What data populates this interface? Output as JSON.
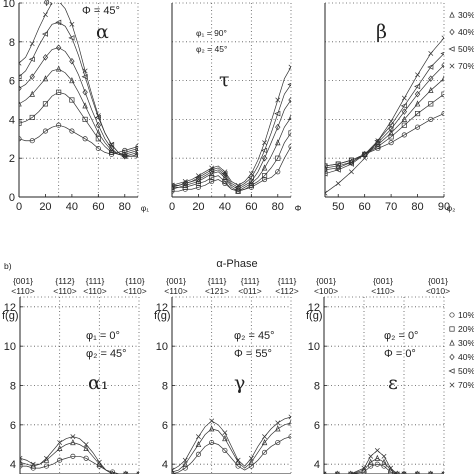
{
  "chart_data": [
    {
      "type": "line",
      "id": "alpha",
      "annotations": [
        "φ₁",
        "Φ = 45°"
      ],
      "fiber_label": "α",
      "xlabel": "φ₁",
      "xlim": [
        0,
        90
      ],
      "ylim": [
        0,
        10
      ],
      "xticks": [
        "0",
        "20",
        "40",
        "60",
        "80"
      ],
      "yticks": [
        "0",
        "2",
        "4",
        "6",
        "8",
        "10"
      ],
      "x": [
        0,
        5,
        10,
        15,
        20,
        25,
        30,
        35,
        40,
        45,
        50,
        55,
        60,
        65,
        70,
        75,
        80,
        85,
        90
      ],
      "series": [
        {
          "marker": "circle",
          "values": [
            3.0,
            2.9,
            2.9,
            3.1,
            3.4,
            3.6,
            3.7,
            3.6,
            3.4,
            3.2,
            3.0,
            2.8,
            2.5,
            2.3,
            2.2,
            2.3,
            2.4,
            2.5,
            2.6
          ]
        },
        {
          "marker": "square",
          "values": [
            3.8,
            3.9,
            4.1,
            4.4,
            4.8,
            5.2,
            5.4,
            5.3,
            5.0,
            4.5,
            4.0,
            3.5,
            3.0,
            2.6,
            2.3,
            2.2,
            2.3,
            2.4,
            2.5
          ]
        },
        {
          "marker": "triangle",
          "values": [
            4.8,
            5.0,
            5.3,
            5.7,
            6.1,
            6.5,
            6.6,
            6.4,
            6.0,
            5.4,
            4.7,
            4.0,
            3.3,
            2.8,
            2.4,
            2.2,
            2.2,
            2.3,
            2.4
          ]
        },
        {
          "marker": "diamond",
          "values": [
            5.6,
            5.8,
            6.2,
            6.7,
            7.2,
            7.6,
            7.7,
            7.5,
            7.0,
            6.3,
            5.4,
            4.5,
            3.7,
            3.0,
            2.5,
            2.2,
            2.1,
            2.2,
            2.3
          ]
        },
        {
          "marker": "tri-left",
          "values": [
            6.2,
            6.5,
            7.1,
            7.8,
            8.4,
            8.9,
            9.0,
            8.8,
            8.2,
            7.3,
            6.2,
            5.1,
            4.1,
            3.3,
            2.7,
            2.3,
            2.1,
            2.1,
            2.2
          ]
        },
        {
          "marker": "x",
          "values": [
            6.9,
            7.2,
            7.9,
            8.7,
            9.4,
            10.0,
            10.1,
            9.7,
            8.9,
            7.8,
            6.5,
            5.3,
            4.2,
            3.3,
            2.7,
            2.3,
            2.1,
            2.1,
            2.1
          ]
        }
      ]
    },
    {
      "type": "line",
      "id": "tau",
      "annotations": [
        "φ₁ = 90°",
        "φ₂ = 45°"
      ],
      "fiber_label": "τ",
      "xlabel": "Φ",
      "xlim": [
        0,
        90
      ],
      "ylim": [
        0,
        10
      ],
      "xticks": [
        "0",
        "20",
        "40",
        "60",
        "80"
      ],
      "x": [
        0,
        5,
        10,
        15,
        20,
        25,
        30,
        35,
        40,
        45,
        50,
        55,
        60,
        65,
        70,
        75,
        80,
        85,
        90
      ],
      "series": [
        {
          "marker": "circle",
          "values": [
            0.3,
            0.3,
            0.4,
            0.4,
            0.5,
            0.6,
            0.8,
            0.9,
            0.7,
            0.4,
            0.3,
            0.4,
            0.5,
            0.7,
            0.9,
            1.0,
            1.3,
            2.0,
            2.6
          ]
        },
        {
          "marker": "square",
          "values": [
            0.4,
            0.5,
            0.5,
            0.6,
            0.7,
            0.8,
            1.0,
            1.1,
            0.8,
            0.4,
            0.3,
            0.4,
            0.6,
            0.8,
            1.1,
            1.5,
            2.0,
            2.8,
            3.3
          ]
        },
        {
          "marker": "triangle",
          "values": [
            0.5,
            0.5,
            0.6,
            0.7,
            0.8,
            1.0,
            1.2,
            1.3,
            1.0,
            0.5,
            0.3,
            0.5,
            0.7,
            1.0,
            1.5,
            2.1,
            2.8,
            3.6,
            4.1
          ]
        },
        {
          "marker": "diamond",
          "values": [
            0.5,
            0.6,
            0.7,
            0.8,
            0.9,
            1.1,
            1.3,
            1.4,
            1.1,
            0.6,
            0.4,
            0.6,
            0.8,
            1.3,
            2.0,
            2.8,
            3.6,
            4.5,
            5.0
          ]
        },
        {
          "marker": "tri-left",
          "values": [
            0.6,
            0.6,
            0.7,
            0.8,
            1.0,
            1.2,
            1.4,
            1.5,
            1.2,
            0.7,
            0.5,
            0.7,
            1.0,
            1.6,
            2.4,
            3.3,
            4.3,
            5.3,
            5.8
          ]
        },
        {
          "marker": "x",
          "values": [
            0.6,
            0.7,
            0.8,
            0.9,
            1.1,
            1.3,
            1.5,
            1.6,
            1.3,
            0.8,
            0.6,
            0.8,
            1.2,
            1.9,
            2.8,
            3.9,
            5.0,
            6.1,
            6.7
          ]
        }
      ]
    },
    {
      "type": "line",
      "id": "beta",
      "fiber_label": "β",
      "xlabel": "φ₂",
      "xlim": [
        45,
        90
      ],
      "ylim": [
        0,
        10
      ],
      "xticks": [
        "50",
        "60",
        "70",
        "80",
        "90"
      ],
      "x": [
        45,
        50,
        55,
        60,
        65,
        70,
        75,
        80,
        85,
        90
      ],
      "legend": [
        "30%",
        "40%",
        "50%",
        "70%"
      ],
      "series": [
        {
          "marker": "circle",
          "values": [
            1.6,
            1.7,
            1.9,
            2.2,
            2.5,
            2.8,
            3.2,
            3.6,
            4.0,
            4.3
          ]
        },
        {
          "marker": "square",
          "values": [
            1.6,
            1.7,
            1.9,
            2.2,
            2.6,
            3.1,
            3.7,
            4.3,
            4.8,
            5.3
          ]
        },
        {
          "marker": "triangle",
          "values": [
            1.5,
            1.6,
            1.8,
            2.2,
            2.7,
            3.3,
            4.0,
            4.8,
            5.5,
            6.1
          ]
        },
        {
          "marker": "diamond",
          "values": [
            1.4,
            1.5,
            1.8,
            2.2,
            2.8,
            3.5,
            4.4,
            5.3,
            6.1,
            6.8
          ]
        },
        {
          "marker": "tri-left",
          "values": [
            1.2,
            1.4,
            1.7,
            2.2,
            2.9,
            3.7,
            4.7,
            5.7,
            6.7,
            7.4
          ]
        },
        {
          "marker": "x",
          "values": [
            0.2,
            0.7,
            1.3,
            2.0,
            2.9,
            3.9,
            5.1,
            6.3,
            7.4,
            8.2
          ]
        }
      ]
    },
    {
      "type": "line",
      "id": "alpha1",
      "ylabel": "f(g)",
      "annotations": [
        "φ₁ = 0°",
        "φ₂ = 45°"
      ],
      "fiber_label": "α₁",
      "xlim": [
        0,
        90
      ],
      "ylim": [
        3.5,
        12.5
      ],
      "yticks": [
        "4",
        "6",
        "8",
        "10",
        "12"
      ],
      "x": [
        0,
        5,
        10,
        15,
        20,
        25,
        30,
        35,
        40,
        45,
        50,
        55,
        60,
        65,
        70,
        75,
        80,
        85,
        90
      ],
      "series": [
        {
          "marker": "circle",
          "values": [
            3.9,
            3.9,
            3.8,
            3.8,
            3.9,
            4.0,
            4.2,
            4.3,
            4.4,
            4.4,
            4.3,
            4.1,
            3.9,
            3.7,
            3.6,
            3.5,
            3.5,
            3.5,
            3.5
          ]
        },
        {
          "marker": "triangle",
          "values": [
            4.1,
            4.0,
            3.9,
            4.0,
            4.2,
            4.5,
            4.8,
            5.0,
            5.1,
            5.0,
            4.8,
            4.4,
            4.0,
            3.7,
            3.5,
            3.5,
            3.5,
            3.5,
            3.5
          ]
        },
        {
          "marker": "x",
          "values": [
            4.3,
            4.2,
            4.0,
            4.0,
            4.3,
            4.7,
            5.1,
            5.3,
            5.4,
            5.3,
            5.0,
            4.6,
            4.1,
            3.7,
            3.5,
            3.5,
            3.5,
            3.5,
            3.5
          ]
        }
      ]
    },
    {
      "type": "line",
      "id": "gamma",
      "ylabel": "f(g)",
      "annotations": [
        "φ₂ = 45°",
        "Φ = 55°"
      ],
      "fiber_label": "γ",
      "xlim": [
        0,
        90
      ],
      "ylim": [
        3.5,
        12.5
      ],
      "yticks": [
        "4",
        "6",
        "8",
        "10",
        "12"
      ],
      "x": [
        0,
        5,
        10,
        15,
        20,
        25,
        30,
        35,
        40,
        45,
        50,
        55,
        60,
        65,
        70,
        75,
        80,
        85,
        90
      ],
      "series": [
        {
          "marker": "circle",
          "values": [
            3.5,
            3.6,
            3.8,
            4.1,
            4.5,
            4.9,
            5.1,
            5.0,
            4.7,
            4.3,
            3.9,
            3.7,
            3.9,
            4.2,
            4.6,
            4.9,
            5.1,
            5.3,
            5.4
          ]
        },
        {
          "marker": "triangle",
          "values": [
            3.6,
            3.7,
            4.0,
            4.5,
            5.0,
            5.5,
            5.8,
            5.7,
            5.3,
            4.7,
            4.1,
            3.8,
            4.1,
            4.6,
            5.1,
            5.5,
            5.8,
            6.0,
            6.1
          ]
        },
        {
          "marker": "x",
          "values": [
            3.7,
            3.9,
            4.2,
            4.8,
            5.4,
            5.9,
            6.2,
            6.0,
            5.6,
            4.9,
            4.2,
            3.9,
            4.3,
            4.9,
            5.4,
            5.8,
            6.1,
            6.3,
            6.4
          ]
        }
      ]
    },
    {
      "type": "line",
      "id": "epsilon",
      "ylabel": "f(g)",
      "annotations": [
        "φ₂ = 0°",
        "Φ = 0°"
      ],
      "fiber_label": "ε",
      "xlim": [
        0,
        90
      ],
      "ylim": [
        3.5,
        12.5
      ],
      "yticks": [
        "4",
        "6",
        "8",
        "10",
        "12"
      ],
      "x": [
        0,
        10,
        20,
        30,
        35,
        40,
        45,
        50,
        55,
        60,
        70,
        80,
        90
      ],
      "legend": [
        "10%",
        "20%",
        "30%",
        "40%",
        "50%",
        "70%"
      ],
      "series": [
        {
          "marker": "circle",
          "values": [
            3.5,
            3.5,
            3.5,
            3.6,
            3.9,
            4.0,
            3.9,
            3.6,
            3.5,
            3.5,
            3.5,
            3.5,
            3.5
          ]
        },
        {
          "marker": "triangle",
          "values": [
            3.5,
            3.5,
            3.5,
            3.7,
            4.1,
            4.3,
            4.1,
            3.7,
            3.5,
            3.5,
            3.5,
            3.5,
            3.5
          ]
        },
        {
          "marker": "x",
          "values": [
            3.5,
            3.5,
            3.5,
            3.8,
            4.4,
            4.7,
            4.4,
            3.8,
            3.5,
            3.5,
            3.5,
            3.5,
            3.5
          ]
        }
      ]
    }
  ],
  "figure": {
    "panel_label_b": "b)",
    "phase_title": "α-Phase",
    "orientations": [
      [
        "{001}",
        "<110>"
      ],
      [
        "{112}",
        "<110>"
      ],
      [
        "{111}",
        "<110>"
      ],
      [
        "{110}",
        "<110>"
      ],
      [
        "{001}",
        "<110>"
      ],
      [
        "{111}",
        "<121>"
      ],
      [
        "{111}",
        "<011>"
      ],
      [
        "{111}",
        "<112>"
      ],
      [
        "{001}",
        "<100>"
      ],
      [
        "{001}",
        "<110>"
      ],
      [
        "{001}",
        "<010>"
      ]
    ]
  }
}
